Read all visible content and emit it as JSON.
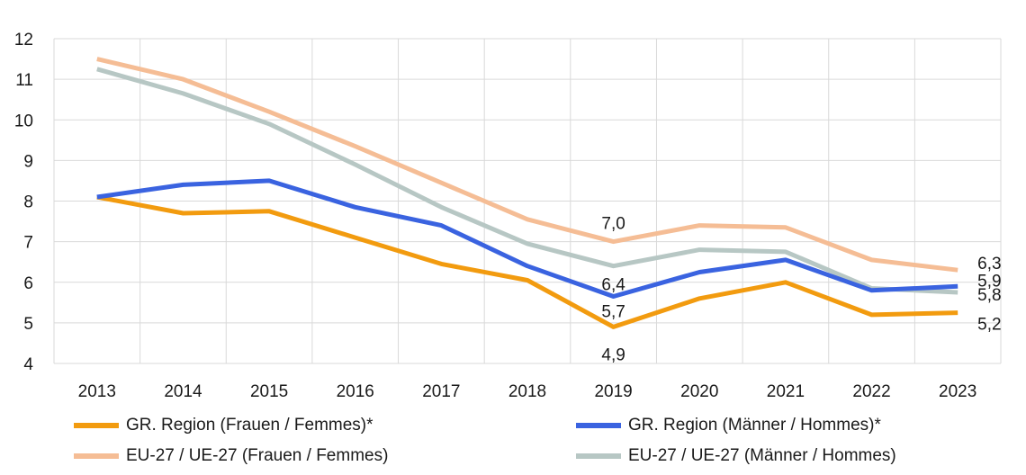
{
  "chart_data": {
    "type": "line",
    "x": [
      "2013",
      "2014",
      "2015",
      "2016",
      "2017",
      "2018",
      "2019",
      "2020",
      "2021",
      "2022",
      "2023"
    ],
    "ylim": [
      4,
      12
    ],
    "yticks": [
      "4",
      "5",
      "6",
      "7",
      "8",
      "9",
      "10",
      "11",
      "12"
    ],
    "grid": true,
    "legend_position": "bottom",
    "series": [
      {
        "name": "GR. Region (Frauen / Femmes)*",
        "color": "#f29b0f",
        "values": [
          8.1,
          7.7,
          7.75,
          7.1,
          6.45,
          6.05,
          4.9,
          5.6,
          6.0,
          5.2,
          5.25
        ]
      },
      {
        "name": "GR. Region (Männer / Hommes)*",
        "color": "#3a63e0",
        "values": [
          8.1,
          8.4,
          8.5,
          7.85,
          7.4,
          6.4,
          5.65,
          6.25,
          6.55,
          5.8,
          5.9
        ]
      },
      {
        "name": "EU-27 / UE-27 (Frauen / Femmes)",
        "color": "#f5bd95",
        "values": [
          11.5,
          11.0,
          10.2,
          9.35,
          8.45,
          7.55,
          7.0,
          7.4,
          7.35,
          6.55,
          6.3
        ]
      },
      {
        "name": "EU-27 / UE-27 (Männer / Hommes)",
        "color": "#b7c7c4",
        "values": [
          11.25,
          10.65,
          9.9,
          8.9,
          7.85,
          6.95,
          6.4,
          6.8,
          6.75,
          5.85,
          5.75
        ]
      }
    ],
    "data_labels": [
      {
        "series": 2,
        "index": 6,
        "text": "7,0"
      },
      {
        "series": 3,
        "index": 6,
        "text": "6,4"
      },
      {
        "series": 1,
        "index": 6,
        "text": "5,7"
      },
      {
        "series": 0,
        "index": 6,
        "text": "4,9"
      },
      {
        "series": 2,
        "index": 10,
        "text": "6,3"
      },
      {
        "series": 1,
        "index": 10,
        "text": "5,9"
      },
      {
        "series": 3,
        "index": 10,
        "text": "5,8"
      },
      {
        "series": 0,
        "index": 10,
        "text": "5,2"
      }
    ]
  }
}
